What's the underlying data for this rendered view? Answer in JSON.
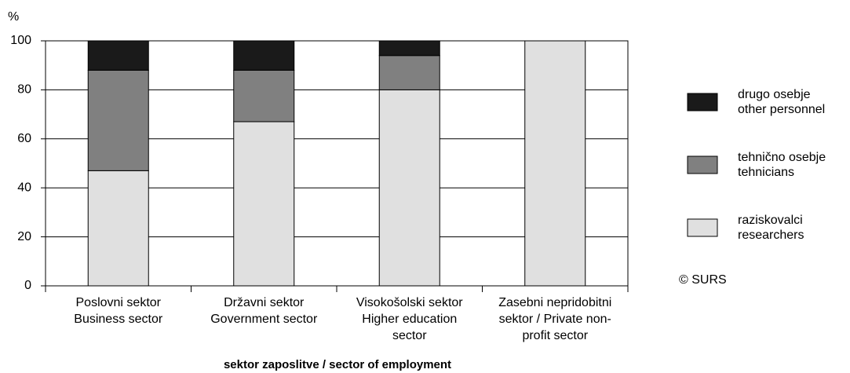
{
  "chart_data": {
    "type": "stacked_bar",
    "y_unit": "%",
    "x_label": "sektor zaposlitve / sector of employment",
    "source": "© SURS",
    "categories": [
      [
        "Poslovni sektor",
        "Business sector"
      ],
      [
        "Državni sektor",
        "Government sector"
      ],
      [
        "Visokošolski sektor",
        "Higher education",
        "sector"
      ],
      [
        "Zasebni nepridobitni",
        "sektor / Private non-",
        "profit  sector"
      ]
    ],
    "series": [
      {
        "name": [
          "raziskovalci",
          "researchers"
        ],
        "color": "#e0e0e0",
        "values": [
          47,
          67,
          80,
          100
        ]
      },
      {
        "name": [
          "tehnično osebje",
          "tehnicians"
        ],
        "color": "#808080",
        "values": [
          41,
          21,
          14,
          0
        ]
      },
      {
        "name": [
          "drugo osebje",
          "other personnel"
        ],
        "color": "#1a1a1a",
        "values": [
          12,
          12,
          6,
          0
        ]
      }
    ],
    "ylim": [
      0,
      100
    ],
    "yticks": [
      0,
      20,
      40,
      60,
      80,
      100
    ],
    "grid": true
  }
}
